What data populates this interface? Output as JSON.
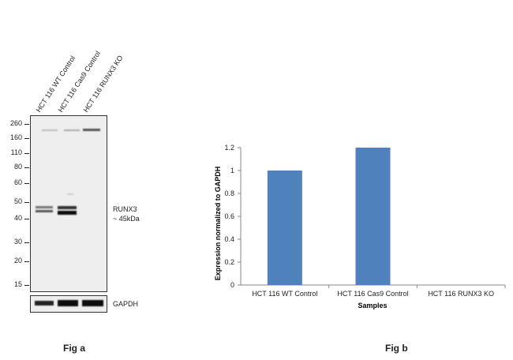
{
  "fig_a": {
    "label": "Fig a",
    "lanes": [
      "HCT 116 WT Control",
      "HCT 116 Cas9 Control",
      "HCT 116 RUNX3 KO"
    ],
    "mw_markers": [
      "260",
      "160",
      "110",
      "80",
      "60",
      "50",
      "40",
      "30",
      "20",
      "15"
    ],
    "target_label": "RUNX3",
    "target_size": "~ 45kDa",
    "loading_control": "GAPDH"
  },
  "fig_b": {
    "label": "Fig b"
  },
  "chart_data": {
    "type": "bar",
    "categories": [
      "HCT 116 WT Control",
      "HCT 116 Cas9 Control",
      "HCT 116 RUNX3 KO"
    ],
    "values": [
      1.0,
      1.2,
      0.0
    ],
    "xlabel": "Samples",
    "ylabel": "Expression  normalized to GAPDH",
    "ylim": [
      0,
      1.2
    ],
    "yticks": [
      "0",
      "0.2",
      "0.4",
      "0.6",
      "0.8",
      "1",
      "1.2"
    ],
    "grid": false,
    "legend": "none",
    "bar_color": "#4f81bd"
  }
}
